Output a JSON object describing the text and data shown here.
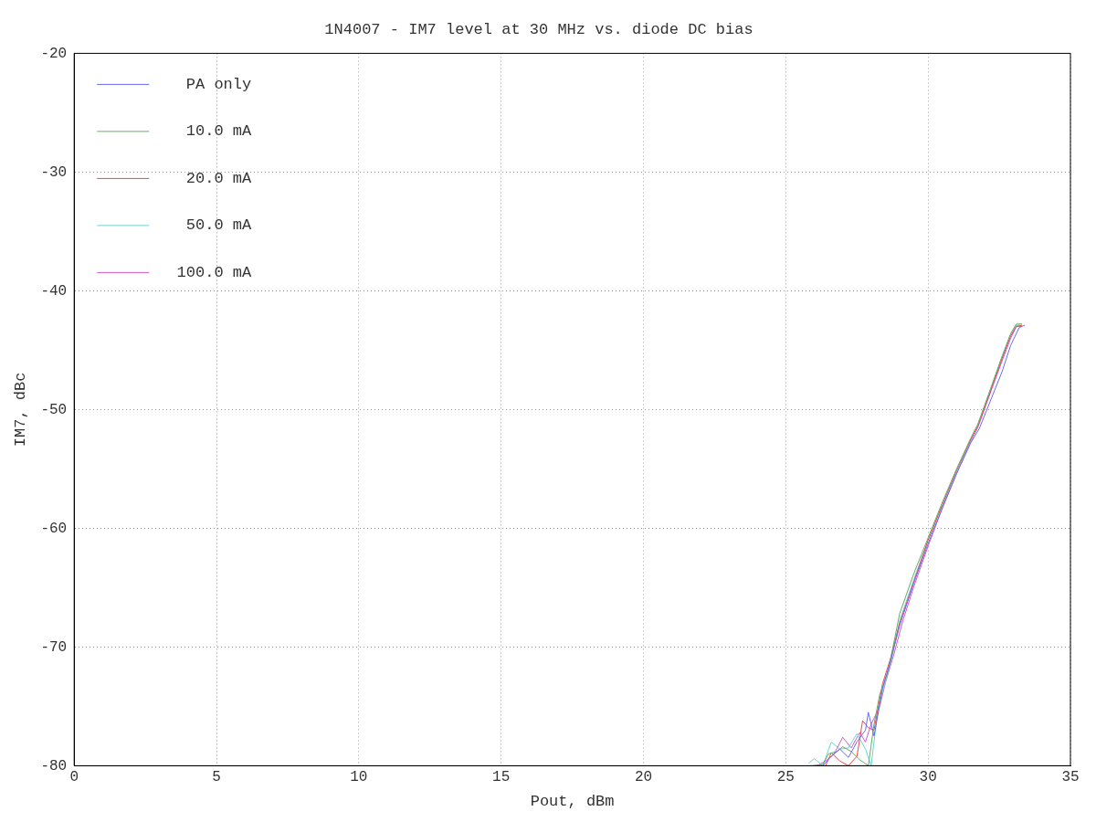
{
  "chart_data": {
    "type": "line",
    "title": "1N4007 - IM7 level at 30 MHz vs. diode DC bias",
    "xlabel": "Pout, dBm",
    "ylabel": "IM7, dBc",
    "xlim": [
      0,
      35
    ],
    "xticks": [
      0,
      5,
      10,
      15,
      20,
      25,
      30,
      35
    ],
    "ylim": [
      -80,
      -20
    ],
    "yticks": [
      -80,
      -70,
      -60,
      -50,
      -40,
      -30,
      -20
    ],
    "grid": true,
    "legend": "top left",
    "marker": "none",
    "line_style": "solid",
    "series": [
      {
        "name": "PA only",
        "color": "#6a6af4",
        "x": [
          26.3,
          26.6,
          26.9,
          27.2,
          27.5,
          27.8,
          27.9,
          28.1,
          28.4,
          28.7,
          29.0,
          29.5,
          30.0,
          30.5,
          31.0,
          31.5,
          31.8,
          32.2,
          32.6,
          32.9,
          33.2,
          33.4
        ],
        "values": [
          -80,
          -79.2,
          -78.6,
          -79.3,
          -78,
          -77,
          -75.5,
          -77.5,
          -73.5,
          -71,
          -68.2,
          -64.6,
          -61.3,
          -58.3,
          -55.4,
          -52.8,
          -51.6,
          -49.2,
          -46.8,
          -44.6,
          -43.1,
          -42.9
        ]
      },
      {
        "name": "10.0 mA",
        "color": "#6aaa6a",
        "x": [
          25.9,
          26.3,
          26.5,
          26.8,
          27.0,
          27.3,
          27.6,
          27.9,
          28.1,
          28.3,
          28.6,
          29.0,
          29.5,
          30.0,
          30.5,
          31.0,
          31.5,
          31.75,
          32.2,
          32.6,
          32.9,
          33.1,
          33.3
        ],
        "values": [
          -80,
          -79.9,
          -79,
          -78.8,
          -78.4,
          -78.8,
          -79.5,
          -80,
          -76.5,
          -74,
          -72,
          -67.2,
          -63.8,
          -60.8,
          -57.8,
          -55,
          -52.4,
          -51.2,
          -48.2,
          -45.5,
          -43.6,
          -42.8,
          -42.8
        ]
      },
      {
        "name": "20.0 mA",
        "color": "#e84a4a",
        "x": [
          26.4,
          26.6,
          26.9,
          27.2,
          27.5,
          27.7,
          27.9,
          28.1,
          28.4,
          28.7,
          29.0,
          29.5,
          30.0,
          30.5,
          31.0,
          31.5,
          31.75,
          32.2,
          32.6,
          32.9,
          33.1,
          33.3
        ],
        "values": [
          -80,
          -78.9,
          -79.6,
          -80,
          -79.2,
          -76.2,
          -76.8,
          -77,
          -73.1,
          -70.8,
          -68,
          -64.5,
          -61,
          -58,
          -55.1,
          -52.5,
          -51.4,
          -48.4,
          -45.7,
          -43.8,
          -43,
          -42.9
        ]
      },
      {
        "name": "50.0 mA",
        "color": "#6ad4d4",
        "x": [
          25.8,
          26.0,
          26.3,
          26.6,
          26.9,
          27.2,
          27.5,
          27.8,
          28.0,
          28.2,
          28.4,
          28.7,
          29.0,
          29.5,
          30.0,
          30.5,
          31.0,
          31.5,
          31.75,
          32.2,
          32.6,
          32.9,
          33.1,
          33.3
        ],
        "values": [
          -79.8,
          -79.4,
          -80,
          -78,
          -78.6,
          -78.5,
          -77.3,
          -78.6,
          -80,
          -76,
          -73.8,
          -71.2,
          -67.8,
          -64.3,
          -61,
          -58.1,
          -55.2,
          -52.6,
          -51.4,
          -48.3,
          -45.6,
          -43.7,
          -42.9,
          -42.9
        ]
      },
      {
        "name": "100.0 mA",
        "color": "#d25ad2",
        "x": [
          26.1,
          26.4,
          26.7,
          27.0,
          27.3,
          27.6,
          27.8,
          28.0,
          28.3,
          28.5,
          28.8,
          29.1,
          29.5,
          30.0,
          30.5,
          31.0,
          31.5,
          31.75,
          32.2,
          32.6,
          32.9,
          33.1,
          33.3
        ],
        "values": [
          -80,
          -79.6,
          -79,
          -77.6,
          -78.5,
          -77.2,
          -78,
          -76.5,
          -75,
          -73,
          -70.6,
          -67.9,
          -64.9,
          -61.5,
          -58.3,
          -55.4,
          -52.7,
          -51.5,
          -48.5,
          -45.9,
          -44,
          -43,
          -43
        ]
      }
    ]
  }
}
